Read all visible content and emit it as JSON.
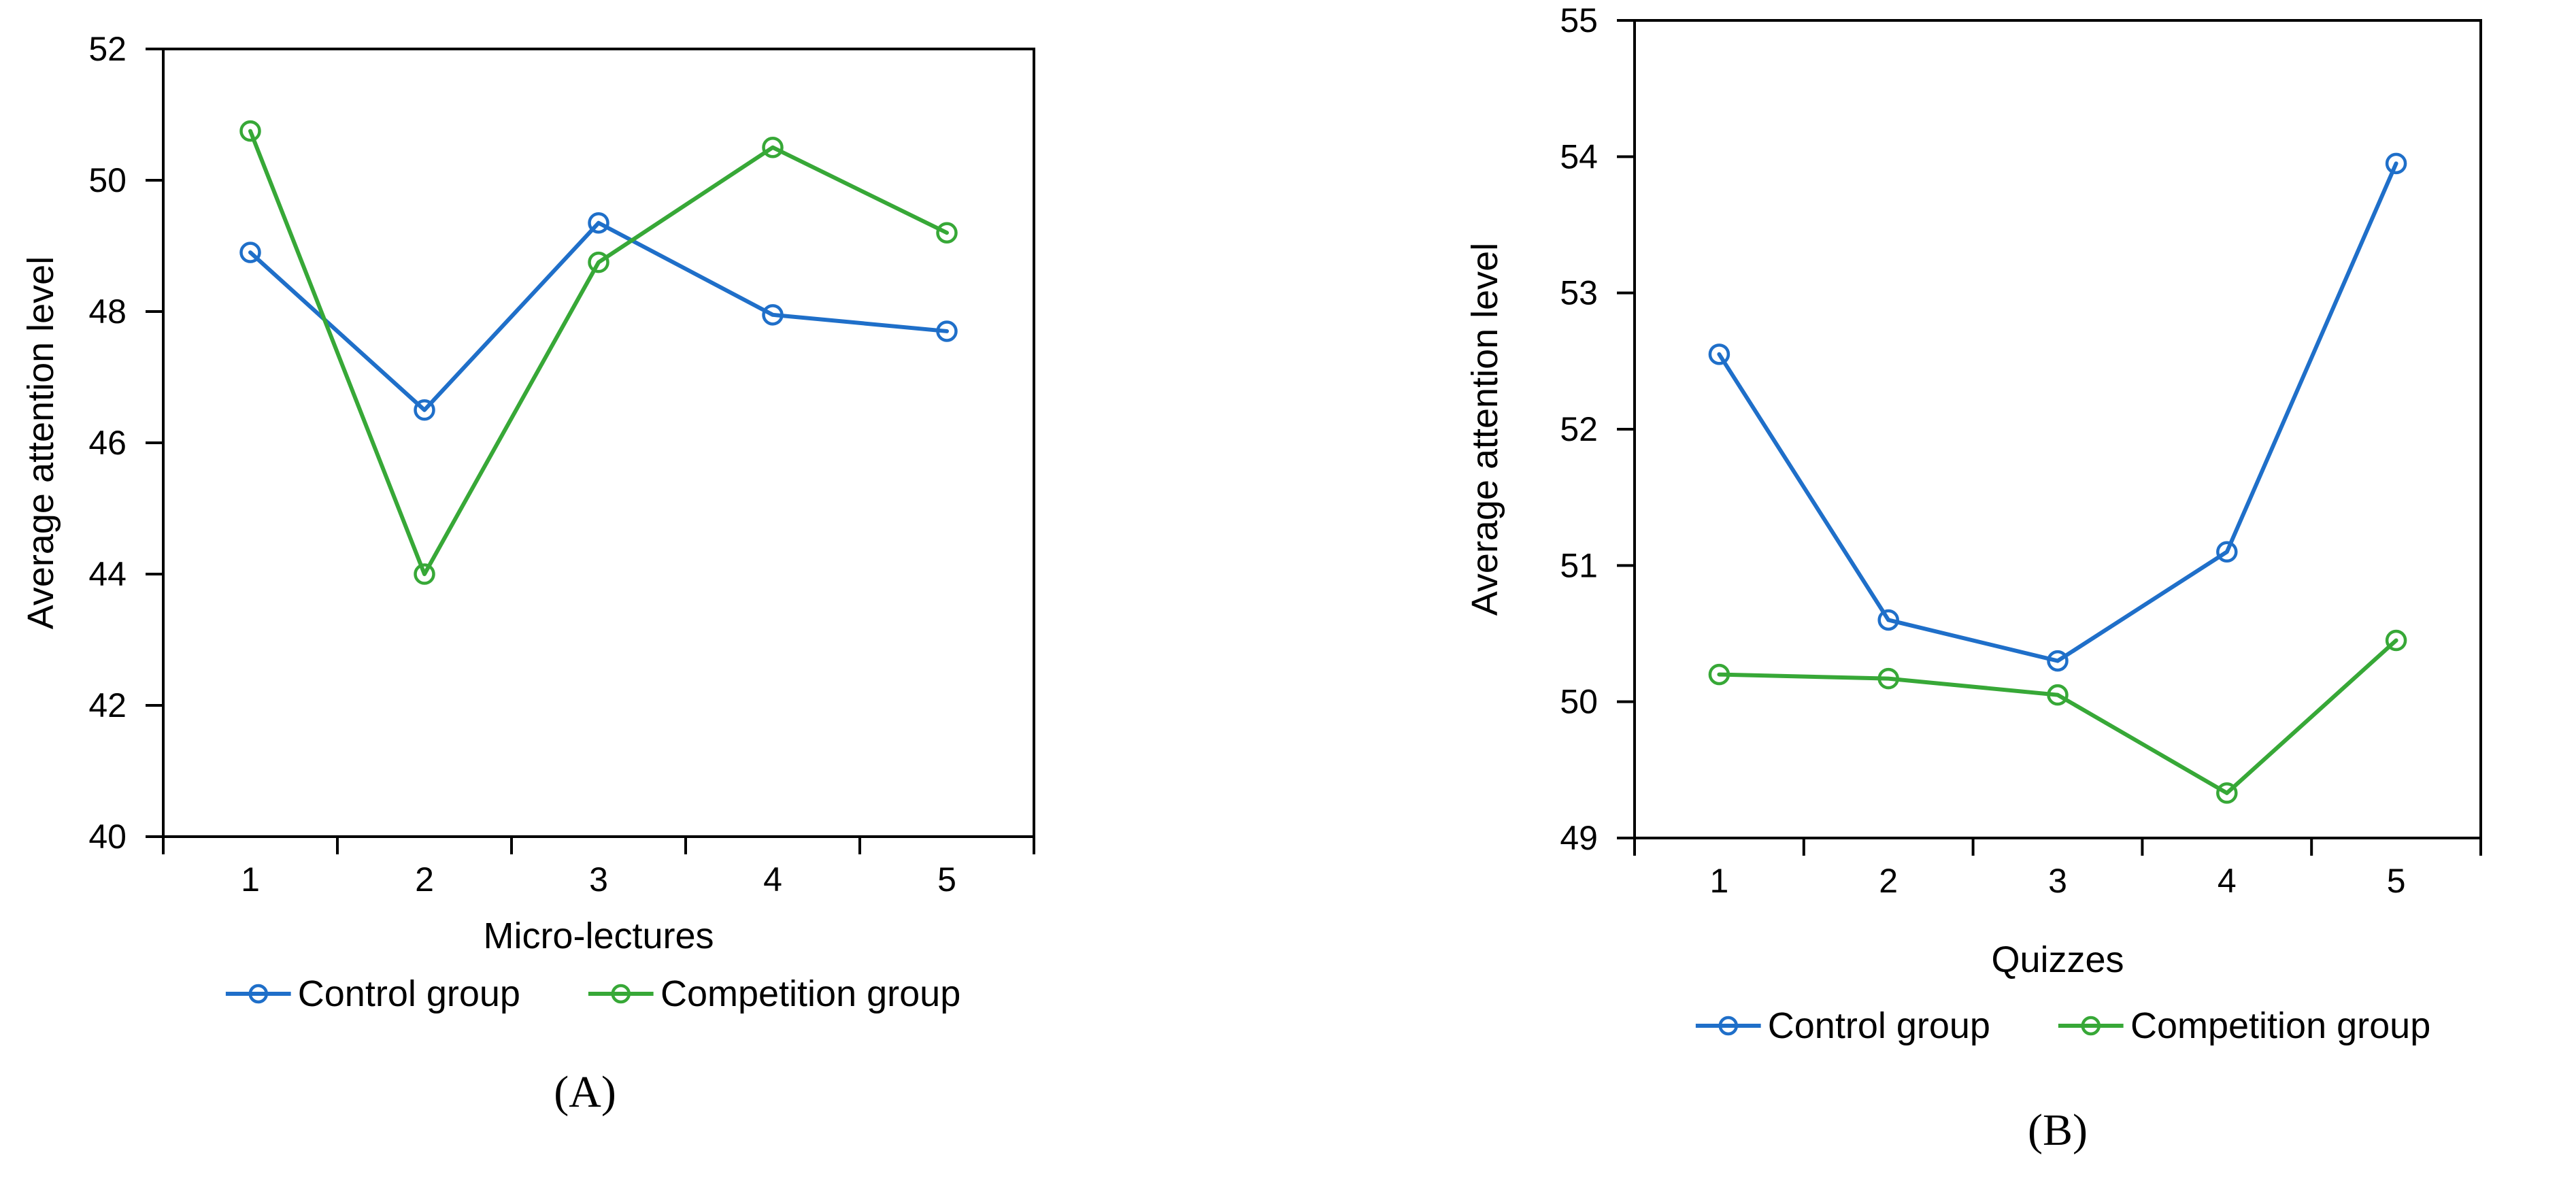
{
  "colors": {
    "control": "#1f6fc9",
    "competition": "#37a837",
    "axis": "#000000",
    "text": "#000000",
    "background": "#ffffff"
  },
  "chart_data": [
    {
      "id": "A",
      "type": "line",
      "caption": "(A)",
      "xlabel": "Micro-lectures",
      "ylabel": "Average attention level",
      "categories": [
        "1",
        "2",
        "3",
        "4",
        "5"
      ],
      "y_axis": {
        "min": 40,
        "max": 52,
        "step": 2,
        "tick_labels": [
          "52",
          "50",
          "48",
          "46",
          "44",
          "42",
          "40"
        ]
      },
      "grid": false,
      "legend_position": "bottom",
      "marker": "open-circle",
      "series": [
        {
          "name": "Control group",
          "color": "control",
          "values": [
            48.9,
            46.5,
            49.35,
            47.95,
            47.7
          ]
        },
        {
          "name": "Competition group",
          "color": "competition",
          "values": [
            50.75,
            44.0,
            48.75,
            50.5,
            49.2
          ]
        }
      ]
    },
    {
      "id": "B",
      "type": "line",
      "caption": "(B)",
      "xlabel": "Quizzes",
      "ylabel": "Average attention level",
      "categories": [
        "1",
        "2",
        "3",
        "4",
        "5"
      ],
      "y_axis": {
        "min": 49,
        "max": 55,
        "step": 1,
        "tick_labels": [
          "55",
          "54",
          "53",
          "52",
          "51",
          "50",
          "49"
        ]
      },
      "grid": false,
      "legend_position": "bottom",
      "marker": "open-circle",
      "series": [
        {
          "name": "Control group",
          "color": "control",
          "values": [
            52.55,
            50.6,
            50.3,
            51.1,
            53.95
          ]
        },
        {
          "name": "Competition group",
          "color": "competition",
          "values": [
            50.2,
            50.17,
            50.05,
            49.33,
            50.45
          ]
        }
      ]
    }
  ]
}
